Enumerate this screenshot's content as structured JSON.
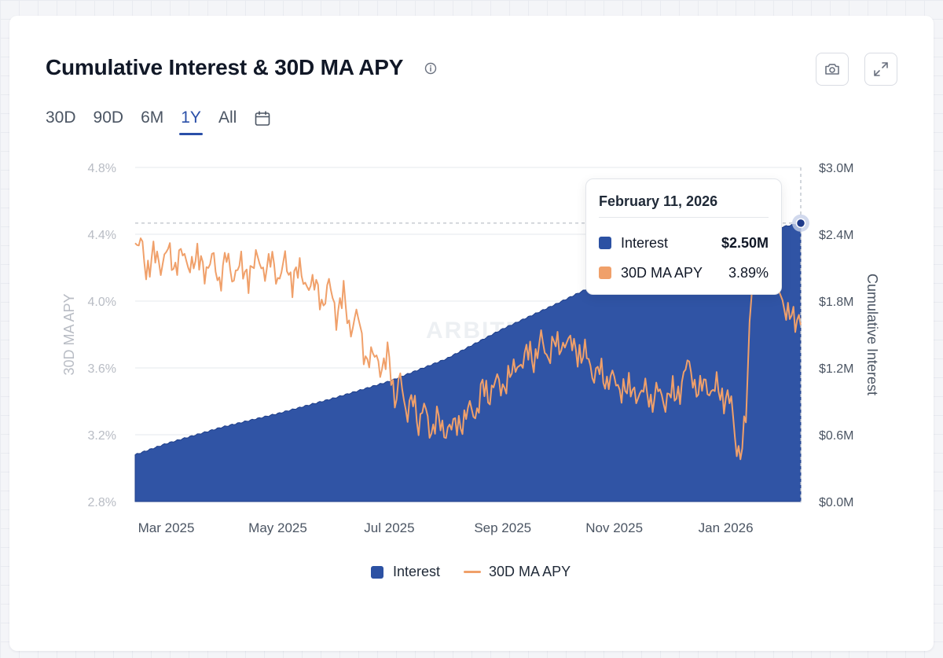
{
  "card": {
    "title": "Cumulative Interest & 30D MA APY",
    "info_icon": "info-circle-icon",
    "camera_icon": "camera-icon",
    "expand_icon": "expand-icon"
  },
  "tabs": [
    {
      "label": "30D",
      "active": false
    },
    {
      "label": "90D",
      "active": false
    },
    {
      "label": "6M",
      "active": false
    },
    {
      "label": "1Y",
      "active": true
    },
    {
      "label": "All",
      "active": false
    }
  ],
  "calendar_icon": "calendar-icon",
  "watermark": "ARBITRUM DAO",
  "colors": {
    "interest": "#2c51a3",
    "apy": "#f0a06a",
    "active_tab": "#2a4fa8",
    "axis_text": "#b8bcc4",
    "grid": "#e6e8ec"
  },
  "tooltip": {
    "date": "February 11, 2026",
    "rows": [
      {
        "label": "Interest",
        "value": "$2.50M"
      },
      {
        "label": "30D MA APY",
        "value": "3.89%"
      }
    ]
  },
  "legend": [
    {
      "label": "Interest",
      "kind": "area"
    },
    {
      "label": "30D MA APY",
      "kind": "line"
    }
  ],
  "chart_data": {
    "type": "area",
    "title": "Cumulative Interest & 30D MA APY",
    "xlabel": "",
    "ylabel": "30D MA APY",
    "y2label": "Cumulative Interest",
    "x_ticks": [
      "Mar 2025",
      "May 2025",
      "Jul 2025",
      "Sep 2025",
      "Nov 2025",
      "Jan 2026"
    ],
    "y_ticks": [
      "2.8%",
      "3.2%",
      "3.6%",
      "4.0%",
      "4.4%",
      "4.8%"
    ],
    "y2_ticks": [
      "$0.0M",
      "$0.6M",
      "$1.2M",
      "$1.8M",
      "$2.4M",
      "$3.0M"
    ],
    "ylim": [
      2.8,
      4.8
    ],
    "y2lim": [
      0,
      3.0
    ],
    "grid": true,
    "legend_position": "bottom-center",
    "series": [
      {
        "name": "Interest",
        "axis": "right",
        "unit": "$M",
        "points": [
          [
            "2025-02-12",
            0.42
          ],
          [
            "2025-03-01",
            0.52
          ],
          [
            "2025-04-01",
            0.67
          ],
          [
            "2025-05-01",
            0.79
          ],
          [
            "2025-06-01",
            0.93
          ],
          [
            "2025-07-01",
            1.08
          ],
          [
            "2025-08-01",
            1.28
          ],
          [
            "2025-09-01",
            1.55
          ],
          [
            "2025-10-01",
            1.78
          ],
          [
            "2025-11-01",
            2.03
          ],
          [
            "2025-12-01",
            2.22
          ],
          [
            "2026-01-01",
            2.36
          ],
          [
            "2026-02-11",
            2.5
          ]
        ]
      },
      {
        "name": "30D MA APY",
        "axis": "left",
        "unit": "%",
        "points": [
          [
            "2025-02-12",
            4.32
          ],
          [
            "2025-02-15",
            4.39
          ],
          [
            "2025-02-18",
            4.15
          ],
          [
            "2025-02-22",
            4.3
          ],
          [
            "2025-02-26",
            4.2
          ],
          [
            "2025-03-02",
            4.32
          ],
          [
            "2025-03-06",
            4.18
          ],
          [
            "2025-03-10",
            4.32
          ],
          [
            "2025-03-14",
            4.17
          ],
          [
            "2025-03-18",
            4.3
          ],
          [
            "2025-03-22",
            4.15
          ],
          [
            "2025-03-26",
            4.28
          ],
          [
            "2025-03-30",
            4.1
          ],
          [
            "2025-04-03",
            4.28
          ],
          [
            "2025-04-07",
            4.12
          ],
          [
            "2025-04-11",
            4.25
          ],
          [
            "2025-04-15",
            4.1
          ],
          [
            "2025-04-19",
            4.3
          ],
          [
            "2025-04-23",
            4.15
          ],
          [
            "2025-04-27",
            4.27
          ],
          [
            "2025-05-01",
            4.12
          ],
          [
            "2025-05-05",
            4.25
          ],
          [
            "2025-05-09",
            4.1
          ],
          [
            "2025-05-13",
            4.22
          ],
          [
            "2025-05-17",
            4.05
          ],
          [
            "2025-05-21",
            4.15
          ],
          [
            "2025-05-25",
            3.95
          ],
          [
            "2025-05-29",
            4.12
          ],
          [
            "2025-06-02",
            3.9
          ],
          [
            "2025-06-06",
            4.05
          ],
          [
            "2025-06-10",
            3.8
          ],
          [
            "2025-06-14",
            3.95
          ],
          [
            "2025-06-18",
            3.6
          ],
          [
            "2025-06-22",
            3.72
          ],
          [
            "2025-06-26",
            3.57
          ],
          [
            "2025-06-30",
            3.7
          ],
          [
            "2025-07-04",
            3.4
          ],
          [
            "2025-07-07",
            3.55
          ],
          [
            "2025-07-10",
            3.33
          ],
          [
            "2025-07-14",
            3.42
          ],
          [
            "2025-07-17",
            3.25
          ],
          [
            "2025-07-20",
            3.38
          ],
          [
            "2025-07-24",
            3.2
          ],
          [
            "2025-07-28",
            3.32
          ],
          [
            "2025-08-01",
            3.18
          ],
          [
            "2025-08-05",
            3.3
          ],
          [
            "2025-08-09",
            3.22
          ],
          [
            "2025-08-13",
            3.38
          ],
          [
            "2025-08-17",
            3.3
          ],
          [
            "2025-08-21",
            3.5
          ],
          [
            "2025-08-25",
            3.42
          ],
          [
            "2025-08-29",
            3.55
          ],
          [
            "2025-09-02",
            3.45
          ],
          [
            "2025-09-06",
            3.62
          ],
          [
            "2025-09-10",
            3.58
          ],
          [
            "2025-09-14",
            3.72
          ],
          [
            "2025-09-18",
            3.63
          ],
          [
            "2025-09-22",
            3.78
          ],
          [
            "2025-09-26",
            3.65
          ],
          [
            "2025-09-30",
            3.78
          ],
          [
            "2025-10-04",
            3.7
          ],
          [
            "2025-10-08",
            3.8
          ],
          [
            "2025-10-12",
            3.65
          ],
          [
            "2025-10-16",
            3.72
          ],
          [
            "2025-10-20",
            3.55
          ],
          [
            "2025-10-24",
            3.6
          ],
          [
            "2025-10-28",
            3.5
          ],
          [
            "2025-11-01",
            3.56
          ],
          [
            "2025-11-05",
            3.43
          ],
          [
            "2025-11-09",
            3.52
          ],
          [
            "2025-11-13",
            3.4
          ],
          [
            "2025-11-17",
            3.5
          ],
          [
            "2025-11-21",
            3.38
          ],
          [
            "2025-11-25",
            3.48
          ],
          [
            "2025-11-29",
            3.38
          ],
          [
            "2025-12-03",
            3.48
          ],
          [
            "2025-12-07",
            3.42
          ],
          [
            "2025-12-11",
            3.68
          ],
          [
            "2025-12-15",
            3.45
          ],
          [
            "2025-12-19",
            3.52
          ],
          [
            "2025-12-23",
            3.45
          ],
          [
            "2025-12-27",
            3.5
          ],
          [
            "2025-12-31",
            3.4
          ],
          [
            "2026-01-04",
            3.42
          ],
          [
            "2026-01-07",
            3.1
          ],
          [
            "2026-01-09",
            3.05
          ],
          [
            "2026-01-12",
            3.35
          ],
          [
            "2026-01-15",
            4.05
          ],
          [
            "2026-01-18",
            4.35
          ],
          [
            "2026-01-22",
            4.25
          ],
          [
            "2026-01-26",
            4.3
          ],
          [
            "2026-01-30",
            4.1
          ],
          [
            "2026-02-03",
            3.9
          ],
          [
            "2026-02-06",
            3.95
          ],
          [
            "2026-02-09",
            3.85
          ],
          [
            "2026-02-11",
            3.89
          ]
        ]
      }
    ],
    "selected": {
      "date": "2026-02-11",
      "interest": 2.5,
      "apy": 3.89
    }
  }
}
